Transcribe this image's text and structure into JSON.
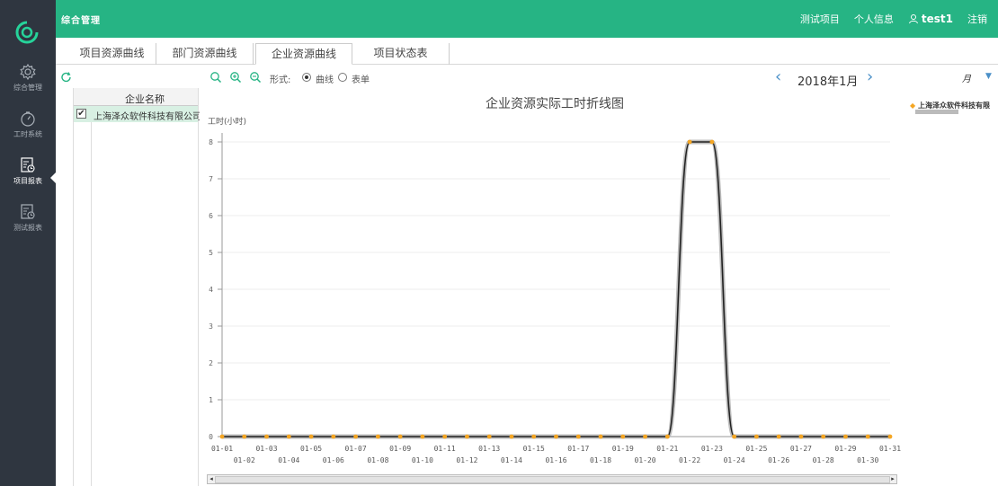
{
  "app": {
    "title": "综合管理",
    "nav_right": {
      "project": "测试项目",
      "profile": "个人信息",
      "user": "test1",
      "logout": "注销"
    }
  },
  "sidebar": {
    "items": [
      {
        "label": "综合管理",
        "icon": "gear-icon"
      },
      {
        "label": "工时系统",
        "icon": "stopwatch-icon"
      },
      {
        "label": "项目报表",
        "icon": "report-icon"
      },
      {
        "label": "测试报表",
        "icon": "report-icon"
      }
    ]
  },
  "tabs": [
    "项目资源曲线",
    "部门资源曲线",
    "企业资源曲线",
    "项目状态表"
  ],
  "toolbar": {
    "form_label": "形式:",
    "option_curve": "曲线",
    "option_table": "表单",
    "month": "2018年1月",
    "unit": "月"
  },
  "grid": {
    "header": "企业名称",
    "rows": [
      {
        "name": "上海泽众软件科技有限公司",
        "checked": true
      }
    ]
  },
  "legend": {
    "text": "上海泽众软件科技有限"
  },
  "colors": {
    "accent": "#26b484",
    "sidebar": "#2f3640",
    "point": "#f5a623"
  },
  "chart_data": {
    "type": "line",
    "title": "企业资源实际工时折线图",
    "ylabel": "工时(小时)",
    "xlabel": "",
    "ylim": [
      0,
      8
    ],
    "yticks": [
      0,
      1,
      2,
      3,
      4,
      5,
      6,
      7,
      8
    ],
    "x": [
      "01-01",
      "01-02",
      "01-03",
      "01-04",
      "01-05",
      "01-06",
      "01-07",
      "01-08",
      "01-09",
      "01-10",
      "01-11",
      "01-12",
      "01-13",
      "01-14",
      "01-15",
      "01-16",
      "01-17",
      "01-18",
      "01-19",
      "01-20",
      "01-21",
      "01-22",
      "01-23",
      "01-24",
      "01-25",
      "01-26",
      "01-27",
      "01-28",
      "01-29",
      "01-30",
      "01-31"
    ],
    "series": [
      {
        "name": "上海泽众软件科技有限",
        "values": [
          0,
          0,
          0,
          0,
          0,
          0,
          0,
          0,
          0,
          0,
          0,
          0,
          0,
          0,
          0,
          0,
          0,
          0,
          0,
          0,
          0,
          8,
          8,
          0,
          0,
          0,
          0,
          0,
          0,
          0,
          0
        ]
      }
    ],
    "grid": true,
    "legend_position": "top-right"
  }
}
